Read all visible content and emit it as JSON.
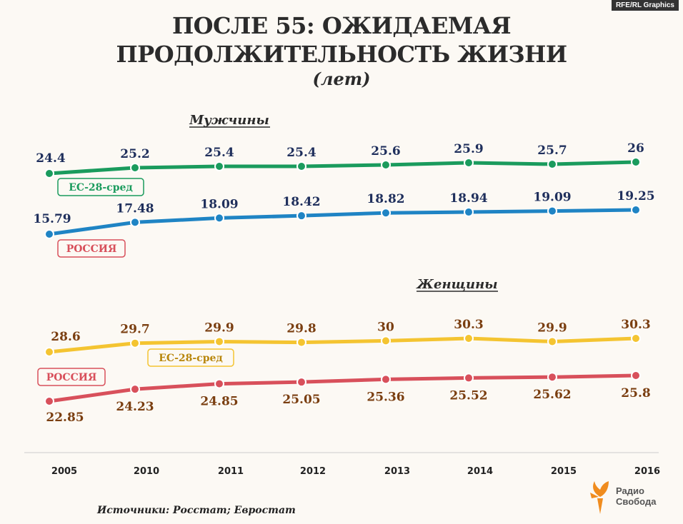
{
  "header": {
    "badge": "RFE/RL Graphics",
    "title_line1": "ПОСЛЕ 55: ОЖИДАЕМАЯ",
    "title_line2": "ПРОДОЛЖИТЕЛЬНОСТЬ ЖИЗНИ",
    "subtitle": "(лет)"
  },
  "footer": {
    "source": "Источники: Росстат; Евростат",
    "logo_line1": "Радио",
    "logo_line2": "Свобода"
  },
  "colors": {
    "eu_men": "#1a9b5d",
    "russia_men": "#1f84c4",
    "eu_women": "#f4c431",
    "russia_women": "#d8505b",
    "text_dark_blue": "#1f2f5c",
    "text_brown": "#7a3e10",
    "logo_orange": "#f08c1e"
  },
  "chart_data": [
    {
      "type": "line",
      "title": "Мужчины",
      "categories": [
        "2005",
        "2010",
        "2011",
        "2012",
        "2013",
        "2014",
        "2015",
        "2016"
      ],
      "series": [
        {
          "name": "ЕС-28-сред",
          "values": [
            24.4,
            25.2,
            25.4,
            25.4,
            25.6,
            25.9,
            25.7,
            26
          ],
          "labels": [
            "24.4",
            "25.2",
            "25.4",
            "25.4",
            "25.6",
            "25.9",
            "25.7",
            "26"
          ]
        },
        {
          "name": "РОССИЯ",
          "values": [
            15.79,
            17.48,
            18.09,
            18.42,
            18.82,
            18.94,
            19.09,
            19.25
          ],
          "labels": [
            "15.79",
            "17.48",
            "18.09",
            "18.42",
            "18.82",
            "18.94",
            "19.09",
            "19.25"
          ]
        }
      ]
    },
    {
      "type": "line",
      "title": "Женщины",
      "categories": [
        "2005",
        "2010",
        "2011",
        "2012",
        "2013",
        "2014",
        "2015",
        "2016"
      ],
      "series": [
        {
          "name": "ЕС-28-сред",
          "values": [
            28.6,
            29.7,
            29.9,
            29.8,
            30,
            30.3,
            29.9,
            30.3
          ],
          "labels": [
            "28.6",
            "29.7",
            "29.9",
            "29.8",
            "30",
            "30.3",
            "29.9",
            "30.3"
          ]
        },
        {
          "name": "РОССИЯ",
          "values": [
            22.85,
            24.23,
            24.85,
            25.05,
            25.36,
            25.52,
            25.62,
            25.8
          ],
          "labels": [
            "22.85",
            "24.23",
            "24.85",
            "25.05",
            "25.36",
            "25.52",
            "25.62",
            "25.8"
          ]
        }
      ]
    }
  ]
}
